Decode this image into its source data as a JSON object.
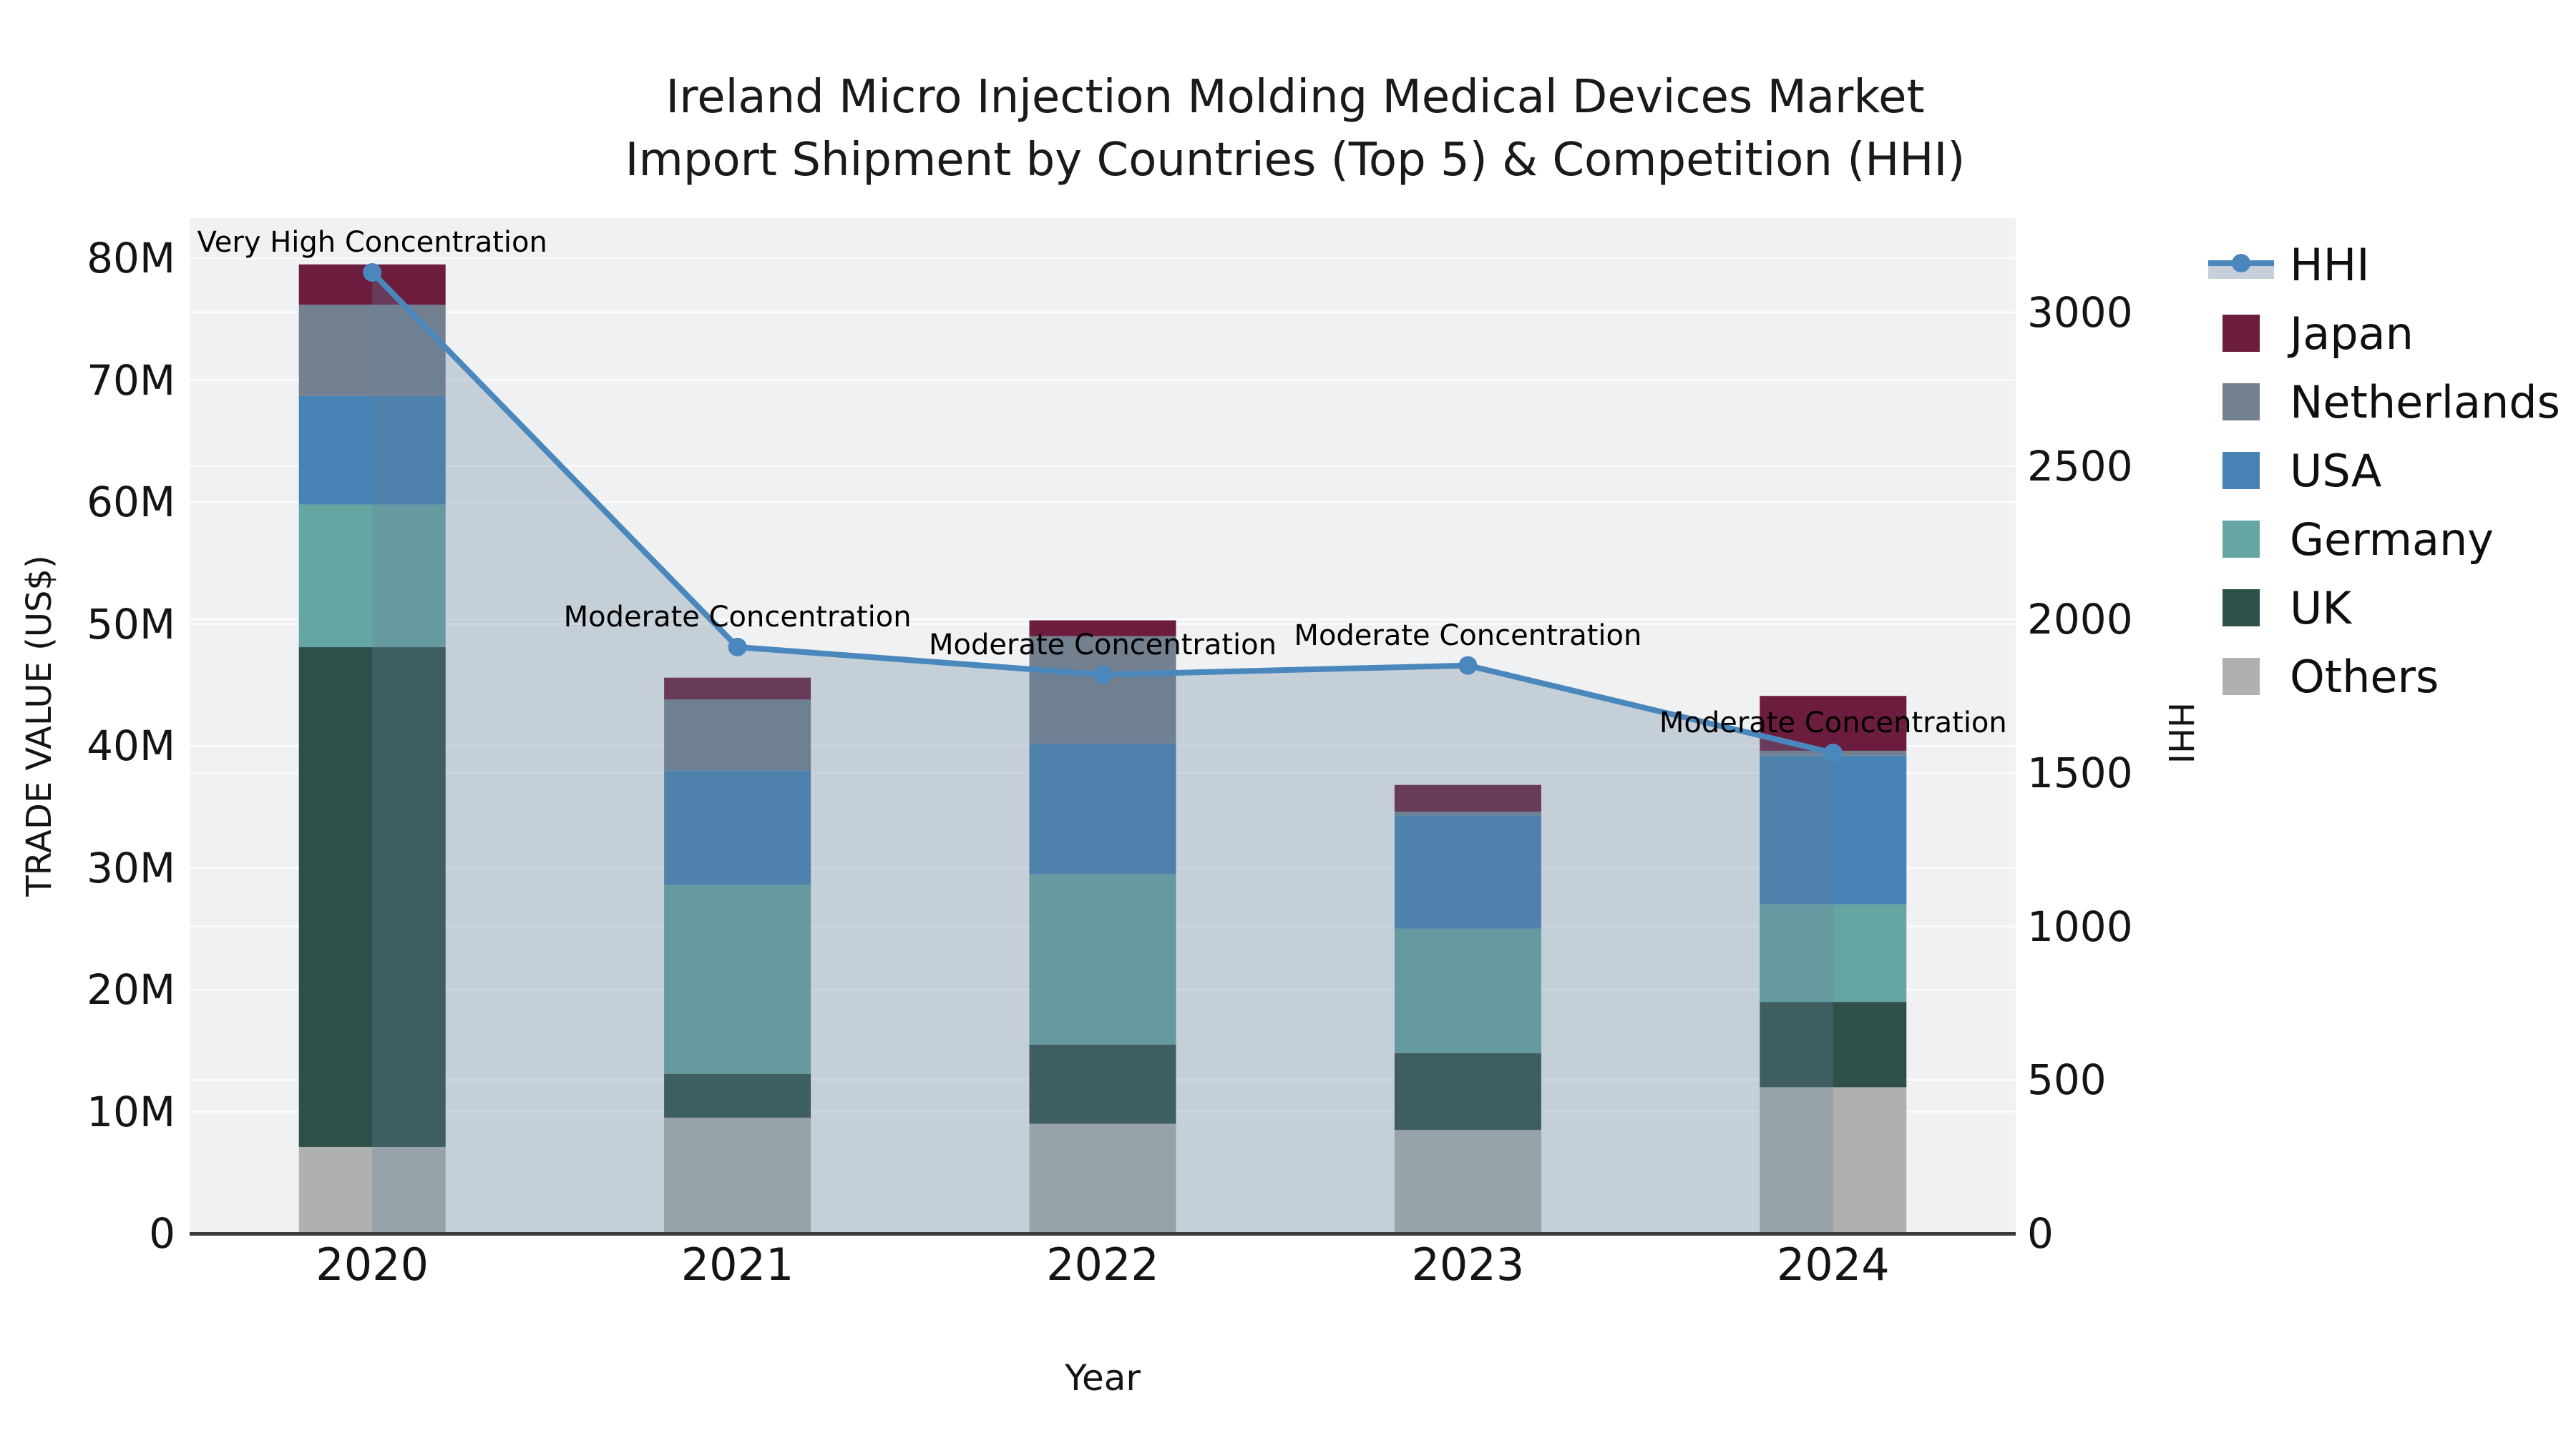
{
  "title": {
    "line1": "Ireland Micro Injection Molding Medical Devices Market",
    "line2": "Import Shipment by Countries (Top 5) & Competition (HHI)"
  },
  "axes": {
    "x_label": "Year",
    "y_left_label": "TRADE VALUE (US$)",
    "y_right_label": "HHI"
  },
  "legend": {
    "items": [
      {
        "label": "HHI",
        "type": "line",
        "color": "#4A87BD",
        "band": "#C7D0DA"
      },
      {
        "label": "Japan",
        "type": "square",
        "color": "#6C1D3E"
      },
      {
        "label": "Netherlands",
        "type": "square",
        "color": "#73808F"
      },
      {
        "label": "USA",
        "type": "square",
        "color": "#4682B4"
      },
      {
        "label": "Germany",
        "type": "square",
        "color": "#65A5A2"
      },
      {
        "label": "UK",
        "type": "square",
        "color": "#2E4F4A"
      },
      {
        "label": "Others",
        "type": "square",
        "color": "#AEB1AF"
      }
    ]
  },
  "chart_data": {
    "type": "bar",
    "stacked": true,
    "title": "Ireland Micro Injection Molding Medical Devices Market — Import Shipment by Countries (Top 5) & Competition (HHI)",
    "xlabel": "Year",
    "ylabel": "TRADE VALUE (US$)",
    "y2label": "HHI",
    "grid": true,
    "legend_position": "right",
    "categories": [
      "2020",
      "2021",
      "2022",
      "2023",
      "2024"
    ],
    "unit_left": "million US$",
    "series": [
      {
        "name": "Others",
        "color": "#AEB1AF",
        "values": [
          7.1,
          9.5,
          9.0,
          8.5,
          12.0
        ]
      },
      {
        "name": "UK",
        "color": "#2E4F4A",
        "values": [
          41.0,
          3.6,
          6.5,
          6.3,
          7.0
        ]
      },
      {
        "name": "Germany",
        "color": "#65A5A2",
        "values": [
          11.7,
          15.5,
          14.0,
          10.2,
          8.0
        ]
      },
      {
        "name": "USA",
        "color": "#4682B4",
        "values": [
          8.9,
          9.4,
          10.7,
          9.3,
          12.2
        ]
      },
      {
        "name": "Netherlands",
        "color": "#73808F",
        "values": [
          7.5,
          5.8,
          8.8,
          0.3,
          0.4
        ]
      },
      {
        "name": "Japan",
        "color": "#6C1D3E",
        "values": [
          3.3,
          1.8,
          1.3,
          2.2,
          4.5
        ]
      }
    ],
    "bar_totals": [
      79.5,
      45.6,
      50.3,
      36.8,
      44.1
    ],
    "line_series": {
      "name": "HHI",
      "color": "#4A87BD",
      "area_fill": "rgba(100,128,156,0.30)",
      "values": [
        3130,
        1910,
        1820,
        1850,
        1565
      ]
    },
    "annotations": [
      {
        "x_index": 0,
        "text": "Very High Concentration"
      },
      {
        "x_index": 1,
        "text": "Moderate Concentration"
      },
      {
        "x_index": 2,
        "text": "Moderate Concentration"
      },
      {
        "x_index": 3,
        "text": "Moderate Concentration"
      },
      {
        "x_index": 4,
        "text": "Moderate Concentration"
      }
    ],
    "y_left": {
      "min": 0,
      "max": 83.3,
      "ticks": [
        0,
        10,
        20,
        30,
        40,
        50,
        60,
        70,
        80
      ],
      "tick_labels": [
        "0",
        "10M",
        "20M",
        "30M",
        "40M",
        "50M",
        "60M",
        "70M",
        "80M"
      ]
    },
    "y_right": {
      "min": 0,
      "max": 3307,
      "ticks": [
        0,
        500,
        1000,
        1500,
        2000,
        2500,
        3000
      ],
      "tick_labels": [
        "0",
        "500",
        "1000",
        "1500",
        "2000",
        "2500",
        "3000"
      ]
    }
  },
  "style": {
    "plot_bg": "#F0F1F3",
    "grid_color": "#FAFBFC",
    "axis_line_color": "#3A3A3A"
  }
}
